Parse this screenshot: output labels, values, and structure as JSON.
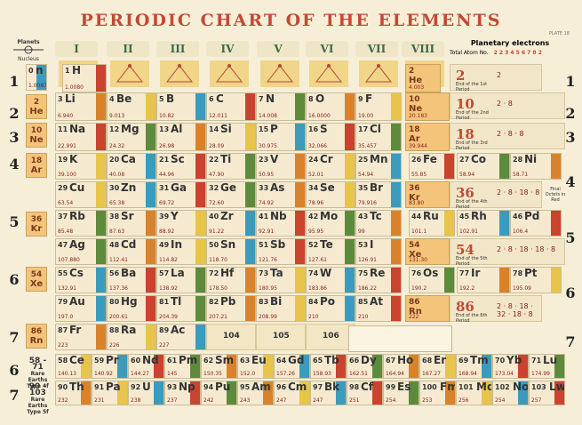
{
  "title": "PERIODIC CHART OF THE ELEMENTS",
  "plate": "PLATE 18",
  "planets": {
    "label": "Planets",
    "nucleus": "Nucleus"
  },
  "groups": [
    "I",
    "II",
    "III",
    "IV",
    "V",
    "VI",
    "VII",
    "VIII"
  ],
  "planetary": {
    "heading": "Planetary electrons",
    "row_label": "Total Atom No.",
    "shells": "2 2 3 4 5 6 7 8 2"
  },
  "period_labels_left": [
    "1",
    "2",
    "3",
    "4",
    "5",
    "6",
    "7",
    "6",
    "7"
  ],
  "period_labels_right": [
    "1",
    "2",
    "3",
    "4",
    "5",
    "6",
    "7"
  ],
  "side_nobles": [
    {
      "n": "0",
      "s": "n"
    },
    {
      "n": "2",
      "s": "He"
    },
    {
      "n": "10",
      "s": "Ne"
    },
    {
      "n": "18",
      "s": "Ar"
    },
    {
      "n": "36",
      "s": "Kr"
    },
    {
      "n": "54",
      "s": "Xe"
    },
    {
      "n": "86",
      "s": "Rn"
    }
  ],
  "elements": [
    {
      "n": "0",
      "s": "n",
      "w": "1.0087"
    },
    {
      "n": "1",
      "s": "H",
      "w": "1.0080"
    },
    {
      "n": "2",
      "s": "He",
      "w": "4.003"
    },
    {
      "n": "3",
      "s": "Li",
      "w": "6.940"
    },
    {
      "n": "4",
      "s": "Be",
      "w": "9.013"
    },
    {
      "n": "5",
      "s": "B",
      "w": "10.82"
    },
    {
      "n": "6",
      "s": "C",
      "w": "12.011"
    },
    {
      "n": "7",
      "s": "N",
      "w": "14.008"
    },
    {
      "n": "8",
      "s": "O",
      "w": "16.0000"
    },
    {
      "n": "9",
      "s": "F",
      "w": "19.00"
    },
    {
      "n": "10",
      "s": "Ne",
      "w": "20.183"
    },
    {
      "n": "11",
      "s": "Na",
      "w": "22.991"
    },
    {
      "n": "12",
      "s": "Mg",
      "w": "24.32"
    },
    {
      "n": "13",
      "s": "Al",
      "w": "26.98"
    },
    {
      "n": "14",
      "s": "Si",
      "w": "28.09"
    },
    {
      "n": "15",
      "s": "P",
      "w": "30.975"
    },
    {
      "n": "16",
      "s": "S",
      "w": "32.066"
    },
    {
      "n": "17",
      "s": "Cl",
      "w": "35.457"
    },
    {
      "n": "18",
      "s": "Ar",
      "w": "39.944"
    },
    {
      "n": "19",
      "s": "K",
      "w": "39.100"
    },
    {
      "n": "20",
      "s": "Ca",
      "w": "40.08"
    },
    {
      "n": "21",
      "s": "Sc",
      "w": "44.96"
    },
    {
      "n": "22",
      "s": "Ti",
      "w": "47.90"
    },
    {
      "n": "23",
      "s": "V",
      "w": "50.95"
    },
    {
      "n": "24",
      "s": "Cr",
      "w": "52.01"
    },
    {
      "n": "25",
      "s": "Mn",
      "w": "54.94"
    },
    {
      "n": "26",
      "s": "Fe",
      "w": "55.85"
    },
    {
      "n": "27",
      "s": "Co",
      "w": "58.94"
    },
    {
      "n": "28",
      "s": "Ni",
      "w": "58.71"
    },
    {
      "n": "29",
      "s": "Cu",
      "w": "63.54"
    },
    {
      "n": "30",
      "s": "Zn",
      "w": "65.38"
    },
    {
      "n": "31",
      "s": "Ga",
      "w": "69.72"
    },
    {
      "n": "32",
      "s": "Ge",
      "w": "72.60"
    },
    {
      "n": "33",
      "s": "As",
      "w": "74.92"
    },
    {
      "n": "34",
      "s": "Se",
      "w": "78.96"
    },
    {
      "n": "35",
      "s": "Br",
      "w": "79.916"
    },
    {
      "n": "36",
      "s": "Kr",
      "w": "83.80"
    },
    {
      "n": "37",
      "s": "Rb",
      "w": "85.48"
    },
    {
      "n": "38",
      "s": "Sr",
      "w": "87.63"
    },
    {
      "n": "39",
      "s": "Y",
      "w": "88.92"
    },
    {
      "n": "40",
      "s": "Zr",
      "w": "91.22"
    },
    {
      "n": "41",
      "s": "Nb",
      "w": "92.91"
    },
    {
      "n": "42",
      "s": "Mo",
      "w": "95.95"
    },
    {
      "n": "43",
      "s": "Tc",
      "w": "99"
    },
    {
      "n": "44",
      "s": "Ru",
      "w": "101.1"
    },
    {
      "n": "45",
      "s": "Rh",
      "w": "102.91"
    },
    {
      "n": "46",
      "s": "Pd",
      "w": "106.4"
    },
    {
      "n": "47",
      "s": "Ag",
      "w": "107.880"
    },
    {
      "n": "48",
      "s": "Cd",
      "w": "112.41"
    },
    {
      "n": "49",
      "s": "In",
      "w": "114.82"
    },
    {
      "n": "50",
      "s": "Sn",
      "w": "118.70"
    },
    {
      "n": "51",
      "s": "Sb",
      "w": "121.76"
    },
    {
      "n": "52",
      "s": "Te",
      "w": "127.61"
    },
    {
      "n": "53",
      "s": "I",
      "w": "126.91"
    },
    {
      "n": "54",
      "s": "Xe",
      "w": "131.30"
    },
    {
      "n": "55",
      "s": "Cs",
      "w": "132.91"
    },
    {
      "n": "56",
      "s": "Ba",
      "w": "137.36"
    },
    {
      "n": "57",
      "s": "La",
      "w": "138.92"
    },
    {
      "n": "72",
      "s": "Hf",
      "w": "178.50"
    },
    {
      "n": "73",
      "s": "Ta",
      "w": "180.95"
    },
    {
      "n": "74",
      "s": "W",
      "w": "183.86"
    },
    {
      "n": "75",
      "s": "Re",
      "w": "186.22"
    },
    {
      "n": "76",
      "s": "Os",
      "w": "190.2"
    },
    {
      "n": "77",
      "s": "Ir",
      "w": "192.2"
    },
    {
      "n": "78",
      "s": "Pt",
      "w": "195.09"
    },
    {
      "n": "79",
      "s": "Au",
      "w": "197.0"
    },
    {
      "n": "80",
      "s": "Hg",
      "w": "200.61"
    },
    {
      "n": "81",
      "s": "Tl",
      "w": "204.39"
    },
    {
      "n": "82",
      "s": "Pb",
      "w": "207.21"
    },
    {
      "n": "83",
      "s": "Bi",
      "w": "208.99"
    },
    {
      "n": "84",
      "s": "Po",
      "w": "210"
    },
    {
      "n": "85",
      "s": "At",
      "w": "210"
    },
    {
      "n": "86",
      "s": "Rn",
      "w": "222"
    },
    {
      "n": "87",
      "s": "Fr",
      "w": "223"
    },
    {
      "n": "88",
      "s": "Ra",
      "w": "226"
    },
    {
      "n": "89",
      "s": "Ac",
      "w": "227"
    },
    {
      "n": "104",
      "s": "",
      "w": ""
    },
    {
      "n": "105",
      "s": "",
      "w": ""
    },
    {
      "n": "106",
      "s": "",
      "w": ""
    },
    {
      "n": "58",
      "s": "Ce",
      "w": "140.13"
    },
    {
      "n": "59",
      "s": "Pr",
      "w": "140.92"
    },
    {
      "n": "60",
      "s": "Nd",
      "w": "144.27"
    },
    {
      "n": "61",
      "s": "Pm",
      "w": "145"
    },
    {
      "n": "62",
      "s": "Sm",
      "w": "150.35"
    },
    {
      "n": "63",
      "s": "Eu",
      "w": "152.0"
    },
    {
      "n": "64",
      "s": "Gd",
      "w": "157.26"
    },
    {
      "n": "65",
      "s": "Tb",
      "w": "158.93"
    },
    {
      "n": "66",
      "s": "Dy",
      "w": "162.51"
    },
    {
      "n": "67",
      "s": "Ho",
      "w": "164.94"
    },
    {
      "n": "68",
      "s": "Er",
      "w": "167.27"
    },
    {
      "n": "69",
      "s": "Tm",
      "w": "168.94"
    },
    {
      "n": "70",
      "s": "Yb",
      "w": "173.04"
    },
    {
      "n": "71",
      "s": "Lu",
      "w": "174.99"
    },
    {
      "n": "90",
      "s": "Th",
      "w": "232"
    },
    {
      "n": "91",
      "s": "Pa",
      "w": "231"
    },
    {
      "n": "92",
      "s": "U",
      "w": "238"
    },
    {
      "n": "93",
      "s": "Np",
      "w": "237"
    },
    {
      "n": "94",
      "s": "Pu",
      "w": "242"
    },
    {
      "n": "95",
      "s": "Am",
      "w": "243"
    },
    {
      "n": "96",
      "s": "Cm",
      "w": "247"
    },
    {
      "n": "97",
      "s": "Bk",
      "w": "247"
    },
    {
      "n": "98",
      "s": "Cf",
      "w": "251"
    },
    {
      "n": "99",
      "s": "Es",
      "w": "254"
    },
    {
      "n": "100",
      "s": "Fm",
      "w": "253"
    },
    {
      "n": "101",
      "s": "Md",
      "w": "256"
    },
    {
      "n": "102",
      "s": "No",
      "w": "254"
    },
    {
      "n": "103",
      "s": "Lw",
      "w": "257"
    }
  ],
  "shells": [
    {
      "big": "2",
      "cap": "End of the 1st Period",
      "cfg": "2"
    },
    {
      "big": "10",
      "cap": "End of the 2nd Period",
      "cfg": "2 · 8"
    },
    {
      "big": "18",
      "cap": "End of the 3rd Period",
      "cfg": "2 · 8 · 8"
    },
    {
      "big": "36",
      "cap": "End of the 4th Period",
      "cfg": "2 · 8 · 18 · 8"
    },
    {
      "big": "54",
      "cap": "End of the 5th Period",
      "cfg": "2 · 8 · 18 · 18 · 8"
    },
    {
      "big": "86",
      "cap": "End of the 6th Period",
      "cfg": "2 · 8 · 18 · 32 · 18 · 8"
    }
  ],
  "final_octets": "Final Octets in Red",
  "rare_earths": {
    "a": {
      "range": "58 - 71",
      "label": "Rare Earths Type 4f"
    },
    "b": {
      "range": "90 - 103",
      "label": "Rare Earths Type 5f"
    }
  },
  "colors": {
    "title": "#c14a35",
    "weight": "#8a1c1c",
    "noble": "#f4c47a",
    "blue": "#3a9bbd",
    "red": "#c9432e",
    "green": "#5e8a3c",
    "orange": "#d9822b",
    "yellow": "#e8c44a"
  }
}
